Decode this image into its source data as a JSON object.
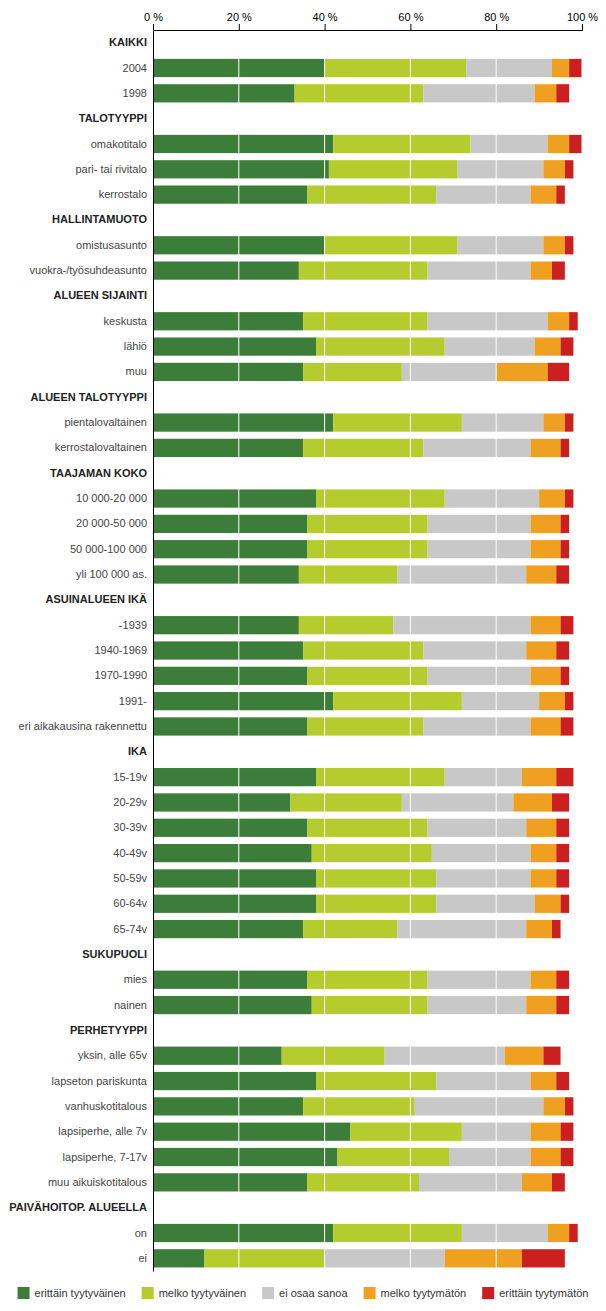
{
  "chart_data": {
    "type": "bar",
    "orientation": "horizontal",
    "stacked": true,
    "grid": true,
    "legend": "bottom",
    "categories": [
      "KAIKKI",
      "2004",
      "1998",
      "TALOTYYPPI",
      "omakotitalo",
      "pari- tai rivitalo",
      "kerrostalo",
      "HALLINTAMUOTO",
      "omistusasunto",
      "vuokra-/työsuhdeasunto",
      "ALUEEN SIJAINTI",
      "keskusta",
      "lähiö",
      "muu",
      "ALUEEN TALOTYYPPI",
      "pientalovaltainen",
      "kerrostalovaltainen",
      "TAAJAMAN KOKO",
      "10 000-20 000",
      "20 000-50 000",
      "50 000-100 000",
      "yli 100 000 as.",
      "ASUINALUEEN IKÄ",
      "-1939",
      "1940-1969",
      "1970-1990",
      "1991-",
      "eri aikakausina rakennettu",
      "IKA",
      "15-19v",
      "20-29v",
      "30-39v",
      "40-49v",
      "50-59v",
      "60-64v",
      "65-74v",
      "SUKUPUOLI",
      "mies",
      "nainen",
      "PERHETYYPPI",
      "yksin, alle 65v",
      "lapseton pariskunta",
      "vanhuskotitalous",
      "lapsiperhe, alle 7v",
      "lapsiperhe, 7-17v",
      "muu aikuiskotitalous",
      "PAIVÄHOITOP. ALUEELLA",
      "on",
      "ei"
    ],
    "series": [
      {
        "name": "erittäin tyytyväinen",
        "color": "#3d7d3a",
        "values": [
          0,
          40,
          33,
          0,
          42,
          41,
          36,
          0,
          40,
          34,
          0,
          35,
          38,
          35,
          0,
          42,
          35,
          0,
          38,
          36,
          36,
          34,
          0,
          34,
          35,
          36,
          42,
          36,
          0,
          38,
          32,
          36,
          37,
          38,
          38,
          35,
          0,
          36,
          37,
          0,
          30,
          38,
          35,
          46,
          43,
          36,
          0,
          42,
          12
        ]
      },
      {
        "name": "melko tyytyväinen",
        "color": "#b5cc2e",
        "values": [
          0,
          33,
          30,
          0,
          32,
          30,
          30,
          0,
          31,
          30,
          0,
          29,
          30,
          23,
          0,
          30,
          28,
          0,
          30,
          28,
          28,
          23,
          0,
          22,
          28,
          28,
          30,
          27,
          0,
          30,
          26,
          28,
          28,
          28,
          28,
          22,
          0,
          28,
          27,
          0,
          24,
          28,
          26,
          26,
          26,
          26,
          0,
          30,
          28
        ]
      },
      {
        "name": "ei osaa sanoa",
        "color": "#c8c8c8",
        "values": [
          0,
          20,
          26,
          0,
          18,
          20,
          22,
          0,
          20,
          24,
          0,
          28,
          21,
          22,
          0,
          19,
          25,
          0,
          22,
          24,
          24,
          30,
          0,
          32,
          24,
          24,
          18,
          25,
          0,
          18,
          26,
          23,
          23,
          22,
          23,
          30,
          0,
          24,
          23,
          0,
          28,
          22,
          30,
          16,
          19,
          24,
          0,
          20,
          28
        ]
      },
      {
        "name": "melko tyytymätön",
        "color": "#f0a020",
        "values": [
          0,
          4,
          5,
          0,
          5,
          5,
          6,
          0,
          5,
          5,
          0,
          5,
          6,
          12,
          0,
          5,
          7,
          0,
          6,
          7,
          7,
          7,
          0,
          7,
          7,
          7,
          6,
          7,
          0,
          8,
          9,
          7,
          6,
          6,
          6,
          6,
          0,
          6,
          7,
          0,
          9,
          6,
          5,
          7,
          7,
          7,
          0,
          5,
          18
        ]
      },
      {
        "name": "erittäin tyytymätön",
        "color": "#cc2020",
        "values": [
          0,
          3,
          3,
          0,
          3,
          2,
          2,
          0,
          2,
          3,
          0,
          2,
          3,
          5,
          0,
          2,
          2,
          0,
          2,
          2,
          2,
          3,
          0,
          3,
          3,
          2,
          2,
          3,
          0,
          4,
          4,
          3,
          3,
          3,
          2,
          2,
          0,
          3,
          3,
          0,
          4,
          3,
          2,
          3,
          3,
          3,
          0,
          2,
          10
        ]
      }
    ],
    "xlim": [
      0,
      100
    ],
    "xticks": [
      {
        "value": 0,
        "label": "0 %"
      },
      {
        "value": 20,
        "label": "20 %"
      },
      {
        "value": 40,
        "label": "40 %"
      },
      {
        "value": 60,
        "label": "60 %"
      },
      {
        "value": 80,
        "label": "80 %"
      },
      {
        "value": 100,
        "label": "100 %"
      }
    ]
  }
}
